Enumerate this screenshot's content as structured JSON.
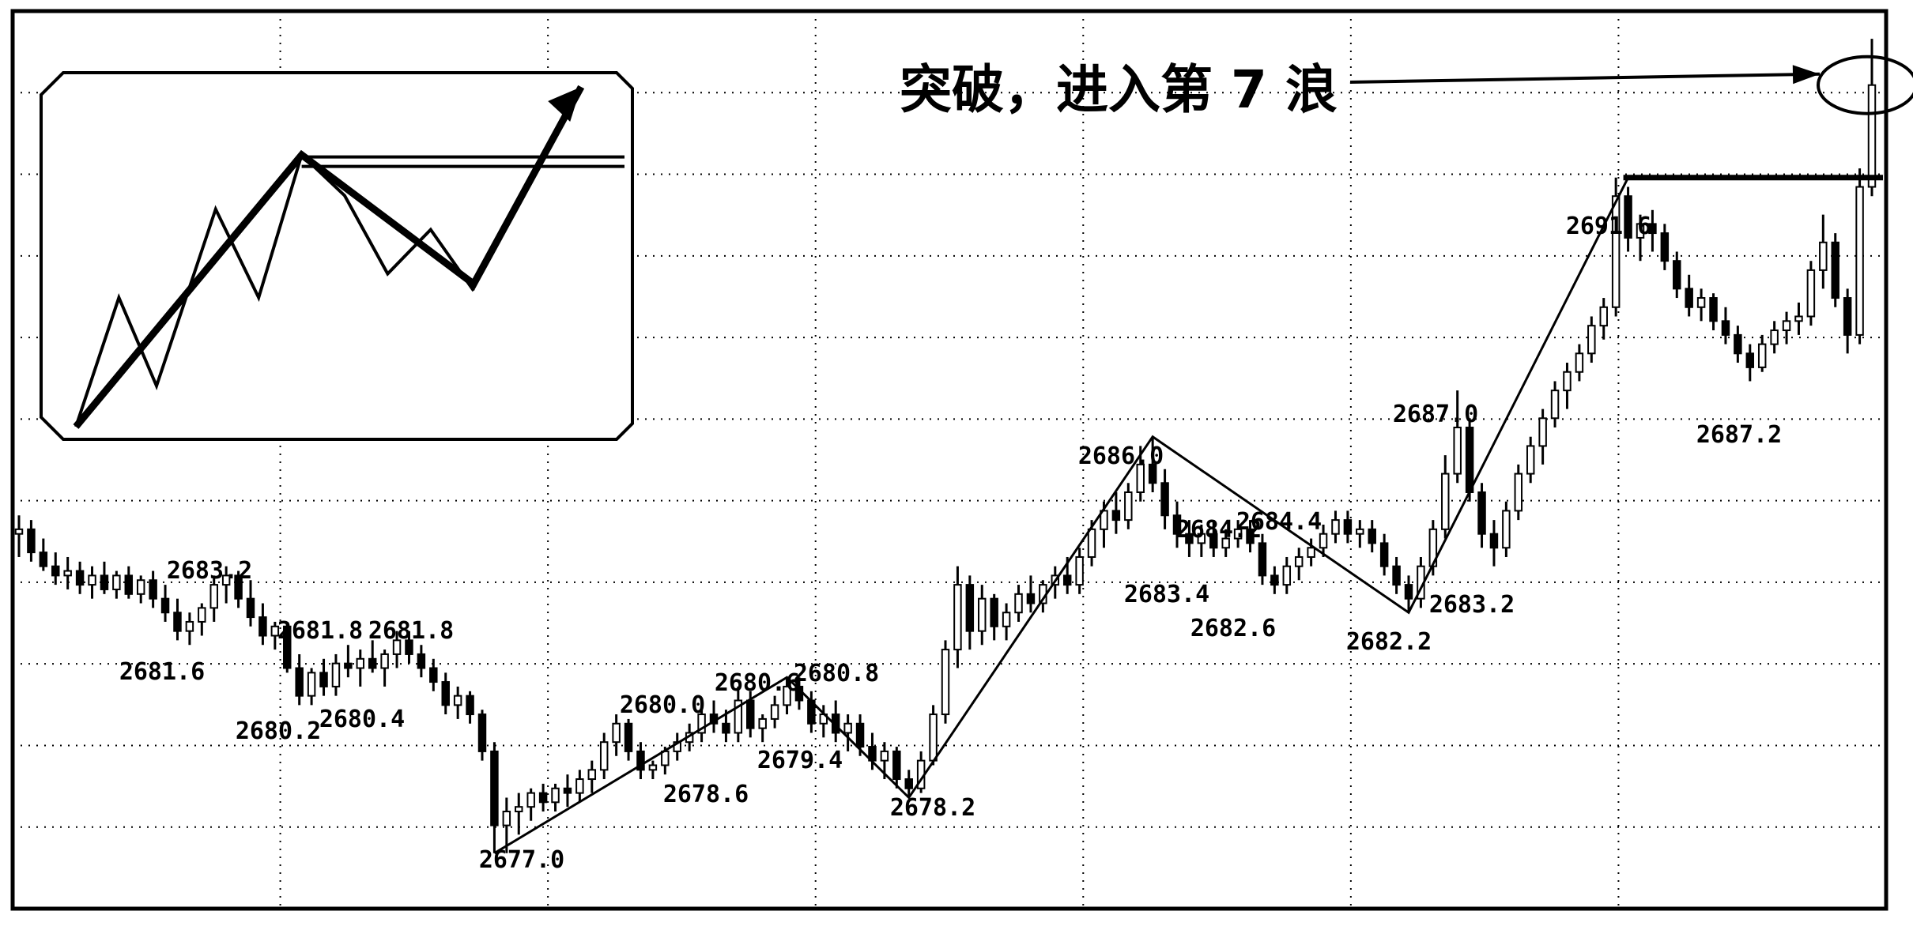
{
  "chart_data": {
    "type": "candlestick",
    "title": "突破，进入第 7 浪",
    "xlabel": "",
    "ylabel": "",
    "ylim": [
      2675.8,
      2695.2
    ],
    "grid": true,
    "price_labels": [
      {
        "text": "2683.2",
        "value": 2683.2
      },
      {
        "text": "2681.6",
        "value": 2681.6
      },
      {
        "text": "2681.8",
        "value": 2681.8
      },
      {
        "text": "2681.8",
        "value": 2681.8
      },
      {
        "text": "2680.2",
        "value": 2680.2
      },
      {
        "text": "2680.4",
        "value": 2680.4
      },
      {
        "text": "2680.0",
        "value": 2680.0
      },
      {
        "text": "2680.6",
        "value": 2680.6
      },
      {
        "text": "2680.8",
        "value": 2680.8
      },
      {
        "text": "2679.4",
        "value": 2679.4
      },
      {
        "text": "2678.6",
        "value": 2678.6
      },
      {
        "text": "2678.2",
        "value": 2678.2
      },
      {
        "text": "2677.0",
        "value": 2677.0
      },
      {
        "text": "2686.0",
        "value": 2686.0
      },
      {
        "text": "2684.2",
        "value": 2684.2
      },
      {
        "text": "2684.4",
        "value": 2684.4
      },
      {
        "text": "2683.4",
        "value": 2683.4
      },
      {
        "text": "2682.6",
        "value": 2682.6
      },
      {
        "text": "2682.2",
        "value": 2682.2
      },
      {
        "text": "2687.0",
        "value": 2687.0
      },
      {
        "text": "2683.2",
        "value": 2683.2
      },
      {
        "text": "2691.6",
        "value": 2691.6
      },
      {
        "text": "2687.2",
        "value": 2687.2
      }
    ],
    "wave_points": [
      2677.0,
      2680.8,
      2678.2,
      2686.0,
      2682.2,
      2691.6,
      2693.6
    ],
    "breakout_level": 2691.6,
    "candles": [
      {
        "o": 2683.9,
        "h": 2684.3,
        "l": 2683.4,
        "c": 2684.0
      },
      {
        "o": 2684.0,
        "h": 2684.2,
        "l": 2683.3,
        "c": 2683.5
      },
      {
        "o": 2683.5,
        "h": 2683.8,
        "l": 2683.1,
        "c": 2683.2
      },
      {
        "o": 2683.2,
        "h": 2683.5,
        "l": 2682.8,
        "c": 2683.0
      },
      {
        "o": 2683.0,
        "h": 2683.4,
        "l": 2682.7,
        "c": 2683.1
      },
      {
        "o": 2683.1,
        "h": 2683.3,
        "l": 2682.6,
        "c": 2682.8
      },
      {
        "o": 2682.8,
        "h": 2683.2,
        "l": 2682.5,
        "c": 2683.0
      },
      {
        "o": 2683.0,
        "h": 2683.3,
        "l": 2682.6,
        "c": 2682.7
      },
      {
        "o": 2682.7,
        "h": 2683.1,
        "l": 2682.5,
        "c": 2683.0
      },
      {
        "o": 2683.0,
        "h": 2683.2,
        "l": 2682.5,
        "c": 2682.6
      },
      {
        "o": 2682.6,
        "h": 2683.0,
        "l": 2682.4,
        "c": 2682.9
      },
      {
        "o": 2682.9,
        "h": 2683.1,
        "l": 2682.3,
        "c": 2682.5
      },
      {
        "o": 2682.5,
        "h": 2682.8,
        "l": 2682.0,
        "c": 2682.2
      },
      {
        "o": 2682.2,
        "h": 2682.5,
        "l": 2681.6,
        "c": 2681.8
      },
      {
        "o": 2681.8,
        "h": 2682.2,
        "l": 2681.5,
        "c": 2682.0
      },
      {
        "o": 2682.0,
        "h": 2682.4,
        "l": 2681.7,
        "c": 2682.3
      },
      {
        "o": 2682.3,
        "h": 2683.0,
        "l": 2682.0,
        "c": 2682.8
      },
      {
        "o": 2682.8,
        "h": 2683.2,
        "l": 2682.4,
        "c": 2683.0
      },
      {
        "o": 2683.0,
        "h": 2683.1,
        "l": 2682.3,
        "c": 2682.5
      },
      {
        "o": 2682.5,
        "h": 2682.9,
        "l": 2681.9,
        "c": 2682.1
      },
      {
        "o": 2682.1,
        "h": 2682.4,
        "l": 2681.5,
        "c": 2681.7
      },
      {
        "o": 2681.7,
        "h": 2682.0,
        "l": 2681.4,
        "c": 2681.9
      },
      {
        "o": 2681.9,
        "h": 2682.0,
        "l": 2680.9,
        "c": 2681.0
      },
      {
        "o": 2681.0,
        "h": 2681.3,
        "l": 2680.2,
        "c": 2680.4
      },
      {
        "o": 2680.4,
        "h": 2681.0,
        "l": 2680.2,
        "c": 2680.9
      },
      {
        "o": 2680.9,
        "h": 2681.2,
        "l": 2680.4,
        "c": 2680.6
      },
      {
        "o": 2680.6,
        "h": 2681.3,
        "l": 2680.4,
        "c": 2681.1
      },
      {
        "o": 2681.1,
        "h": 2681.5,
        "l": 2680.8,
        "c": 2681.0
      },
      {
        "o": 2681.0,
        "h": 2681.4,
        "l": 2680.6,
        "c": 2681.2
      },
      {
        "o": 2681.2,
        "h": 2681.6,
        "l": 2680.9,
        "c": 2681.0
      },
      {
        "o": 2681.0,
        "h": 2681.4,
        "l": 2680.6,
        "c": 2681.3
      },
      {
        "o": 2681.3,
        "h": 2681.8,
        "l": 2681.0,
        "c": 2681.6
      },
      {
        "o": 2681.6,
        "h": 2681.8,
        "l": 2681.1,
        "c": 2681.3
      },
      {
        "o": 2681.3,
        "h": 2681.5,
        "l": 2680.8,
        "c": 2681.0
      },
      {
        "o": 2681.0,
        "h": 2681.2,
        "l": 2680.5,
        "c": 2680.7
      },
      {
        "o": 2680.7,
        "h": 2680.9,
        "l": 2680.0,
        "c": 2680.2
      },
      {
        "o": 2680.2,
        "h": 2680.6,
        "l": 2679.9,
        "c": 2680.4
      },
      {
        "o": 2680.4,
        "h": 2680.5,
        "l": 2679.8,
        "c": 2680.0
      },
      {
        "o": 2680.0,
        "h": 2680.1,
        "l": 2679.0,
        "c": 2679.2
      },
      {
        "o": 2679.2,
        "h": 2679.4,
        "l": 2677.0,
        "c": 2677.6
      },
      {
        "o": 2677.6,
        "h": 2678.2,
        "l": 2677.0,
        "c": 2677.9
      },
      {
        "o": 2677.9,
        "h": 2678.3,
        "l": 2677.4,
        "c": 2678.0
      },
      {
        "o": 2678.0,
        "h": 2678.4,
        "l": 2677.7,
        "c": 2678.3
      },
      {
        "o": 2678.3,
        "h": 2678.5,
        "l": 2677.9,
        "c": 2678.1
      },
      {
        "o": 2678.1,
        "h": 2678.5,
        "l": 2677.9,
        "c": 2678.4
      },
      {
        "o": 2678.4,
        "h": 2678.7,
        "l": 2678.0,
        "c": 2678.3
      },
      {
        "o": 2678.3,
        "h": 2678.8,
        "l": 2678.1,
        "c": 2678.6
      },
      {
        "o": 2678.6,
        "h": 2679.0,
        "l": 2678.3,
        "c": 2678.8
      },
      {
        "o": 2678.8,
        "h": 2679.6,
        "l": 2678.6,
        "c": 2679.4
      },
      {
        "o": 2679.4,
        "h": 2680.0,
        "l": 2679.1,
        "c": 2679.8
      },
      {
        "o": 2679.8,
        "h": 2679.9,
        "l": 2679.0,
        "c": 2679.2
      },
      {
        "o": 2679.2,
        "h": 2679.4,
        "l": 2678.6,
        "c": 2678.8
      },
      {
        "o": 2678.8,
        "h": 2679.0,
        "l": 2678.6,
        "c": 2678.9
      },
      {
        "o": 2678.9,
        "h": 2679.3,
        "l": 2678.7,
        "c": 2679.2
      },
      {
        "o": 2679.2,
        "h": 2679.6,
        "l": 2679.0,
        "c": 2679.4
      },
      {
        "o": 2679.4,
        "h": 2679.8,
        "l": 2679.2,
        "c": 2679.6
      },
      {
        "o": 2679.6,
        "h": 2680.1,
        "l": 2679.4,
        "c": 2680.0
      },
      {
        "o": 2680.0,
        "h": 2680.3,
        "l": 2679.6,
        "c": 2679.8
      },
      {
        "o": 2679.8,
        "h": 2680.1,
        "l": 2679.4,
        "c": 2679.6
      },
      {
        "o": 2679.6,
        "h": 2680.6,
        "l": 2679.4,
        "c": 2680.3
      },
      {
        "o": 2680.3,
        "h": 2680.5,
        "l": 2679.5,
        "c": 2679.7
      },
      {
        "o": 2679.7,
        "h": 2680.0,
        "l": 2679.4,
        "c": 2679.9
      },
      {
        "o": 2679.9,
        "h": 2680.4,
        "l": 2679.7,
        "c": 2680.2
      },
      {
        "o": 2680.2,
        "h": 2680.8,
        "l": 2680.0,
        "c": 2680.6
      },
      {
        "o": 2680.6,
        "h": 2680.8,
        "l": 2680.1,
        "c": 2680.3
      },
      {
        "o": 2680.3,
        "h": 2680.5,
        "l": 2679.6,
        "c": 2679.8
      },
      {
        "o": 2679.8,
        "h": 2680.2,
        "l": 2679.5,
        "c": 2680.0
      },
      {
        "o": 2680.0,
        "h": 2680.3,
        "l": 2679.4,
        "c": 2679.6
      },
      {
        "o": 2679.6,
        "h": 2680.0,
        "l": 2679.2,
        "c": 2679.8
      },
      {
        "o": 2679.8,
        "h": 2680.0,
        "l": 2679.1,
        "c": 2679.3
      },
      {
        "o": 2679.3,
        "h": 2679.6,
        "l": 2678.8,
        "c": 2679.0
      },
      {
        "o": 2679.0,
        "h": 2679.4,
        "l": 2678.6,
        "c": 2679.2
      },
      {
        "o": 2679.2,
        "h": 2679.3,
        "l": 2678.4,
        "c": 2678.6
      },
      {
        "o": 2678.6,
        "h": 2678.8,
        "l": 2678.2,
        "c": 2678.4
      },
      {
        "o": 2678.4,
        "h": 2679.2,
        "l": 2678.3,
        "c": 2679.0
      },
      {
        "o": 2679.0,
        "h": 2680.2,
        "l": 2678.9,
        "c": 2680.0
      },
      {
        "o": 2680.0,
        "h": 2681.6,
        "l": 2679.8,
        "c": 2681.4
      },
      {
        "o": 2681.4,
        "h": 2683.2,
        "l": 2681.0,
        "c": 2682.8
      },
      {
        "o": 2682.8,
        "h": 2683.0,
        "l": 2681.4,
        "c": 2681.8
      },
      {
        "o": 2681.8,
        "h": 2682.8,
        "l": 2681.5,
        "c": 2682.5
      },
      {
        "o": 2682.5,
        "h": 2682.6,
        "l": 2681.6,
        "c": 2681.9
      },
      {
        "o": 2681.9,
        "h": 2682.4,
        "l": 2681.6,
        "c": 2682.2
      },
      {
        "o": 2682.2,
        "h": 2682.8,
        "l": 2682.0,
        "c": 2682.6
      },
      {
        "o": 2682.6,
        "h": 2683.0,
        "l": 2682.2,
        "c": 2682.4
      },
      {
        "o": 2682.4,
        "h": 2682.9,
        "l": 2682.2,
        "c": 2682.8
      },
      {
        "o": 2682.8,
        "h": 2683.2,
        "l": 2682.5,
        "c": 2683.0
      },
      {
        "o": 2683.0,
        "h": 2683.4,
        "l": 2682.6,
        "c": 2682.8
      },
      {
        "o": 2682.8,
        "h": 2683.6,
        "l": 2682.6,
        "c": 2683.4
      },
      {
        "o": 2683.4,
        "h": 2684.2,
        "l": 2683.2,
        "c": 2684.0
      },
      {
        "o": 2684.0,
        "h": 2684.6,
        "l": 2683.6,
        "c": 2684.4
      },
      {
        "o": 2684.4,
        "h": 2684.8,
        "l": 2683.9,
        "c": 2684.2
      },
      {
        "o": 2684.2,
        "h": 2685.0,
        "l": 2684.0,
        "c": 2684.8
      },
      {
        "o": 2684.8,
        "h": 2685.8,
        "l": 2684.6,
        "c": 2685.4
      },
      {
        "o": 2685.4,
        "h": 2686.0,
        "l": 2684.8,
        "c": 2685.0
      },
      {
        "o": 2685.0,
        "h": 2685.3,
        "l": 2684.0,
        "c": 2684.3
      },
      {
        "o": 2684.3,
        "h": 2684.6,
        "l": 2683.6,
        "c": 2683.9
      },
      {
        "o": 2683.9,
        "h": 2684.2,
        "l": 2683.4,
        "c": 2683.7
      },
      {
        "o": 2683.7,
        "h": 2684.1,
        "l": 2683.4,
        "c": 2683.9
      },
      {
        "o": 2683.9,
        "h": 2684.2,
        "l": 2683.4,
        "c": 2683.6
      },
      {
        "o": 2683.6,
        "h": 2684.0,
        "l": 2683.4,
        "c": 2683.8
      },
      {
        "o": 2683.8,
        "h": 2684.2,
        "l": 2683.6,
        "c": 2684.0
      },
      {
        "o": 2684.0,
        "h": 2684.2,
        "l": 2683.5,
        "c": 2683.7
      },
      {
        "o": 2683.7,
        "h": 2683.9,
        "l": 2682.8,
        "c": 2683.0
      },
      {
        "o": 2683.0,
        "h": 2683.2,
        "l": 2682.6,
        "c": 2682.8
      },
      {
        "o": 2682.8,
        "h": 2683.4,
        "l": 2682.6,
        "c": 2683.2
      },
      {
        "o": 2683.2,
        "h": 2683.6,
        "l": 2682.9,
        "c": 2683.4
      },
      {
        "o": 2683.4,
        "h": 2683.8,
        "l": 2683.2,
        "c": 2683.6
      },
      {
        "o": 2683.6,
        "h": 2684.1,
        "l": 2683.4,
        "c": 2683.9
      },
      {
        "o": 2683.9,
        "h": 2684.4,
        "l": 2683.7,
        "c": 2684.2
      },
      {
        "o": 2684.2,
        "h": 2684.4,
        "l": 2683.7,
        "c": 2683.9
      },
      {
        "o": 2683.9,
        "h": 2684.2,
        "l": 2683.6,
        "c": 2684.0
      },
      {
        "o": 2684.0,
        "h": 2684.2,
        "l": 2683.5,
        "c": 2683.7
      },
      {
        "o": 2683.7,
        "h": 2683.9,
        "l": 2683.0,
        "c": 2683.2
      },
      {
        "o": 2683.2,
        "h": 2683.4,
        "l": 2682.6,
        "c": 2682.8
      },
      {
        "o": 2682.8,
        "h": 2683.0,
        "l": 2682.2,
        "c": 2682.5
      },
      {
        "o": 2682.5,
        "h": 2683.4,
        "l": 2682.3,
        "c": 2683.2
      },
      {
        "o": 2683.2,
        "h": 2684.2,
        "l": 2683.0,
        "c": 2684.0
      },
      {
        "o": 2684.0,
        "h": 2685.6,
        "l": 2683.8,
        "c": 2685.2
      },
      {
        "o": 2685.2,
        "h": 2687.0,
        "l": 2685.0,
        "c": 2686.2
      },
      {
        "o": 2686.2,
        "h": 2686.4,
        "l": 2684.6,
        "c": 2684.8
      },
      {
        "o": 2684.8,
        "h": 2685.0,
        "l": 2683.6,
        "c": 2683.9
      },
      {
        "o": 2683.9,
        "h": 2684.2,
        "l": 2683.2,
        "c": 2683.6
      },
      {
        "o": 2683.6,
        "h": 2684.6,
        "l": 2683.4,
        "c": 2684.4
      },
      {
        "o": 2684.4,
        "h": 2685.4,
        "l": 2684.2,
        "c": 2685.2
      },
      {
        "o": 2685.2,
        "h": 2686.0,
        "l": 2685.0,
        "c": 2685.8
      },
      {
        "o": 2685.8,
        "h": 2686.6,
        "l": 2685.4,
        "c": 2686.4
      },
      {
        "o": 2686.4,
        "h": 2687.2,
        "l": 2686.2,
        "c": 2687.0
      },
      {
        "o": 2687.0,
        "h": 2687.6,
        "l": 2686.6,
        "c": 2687.4
      },
      {
        "o": 2687.4,
        "h": 2688.0,
        "l": 2687.2,
        "c": 2687.8
      },
      {
        "o": 2687.8,
        "h": 2688.6,
        "l": 2687.6,
        "c": 2688.4
      },
      {
        "o": 2688.4,
        "h": 2689.0,
        "l": 2688.1,
        "c": 2688.8
      },
      {
        "o": 2688.8,
        "h": 2691.6,
        "l": 2688.6,
        "c": 2691.2
      },
      {
        "o": 2691.2,
        "h": 2691.4,
        "l": 2690.0,
        "c": 2690.3
      },
      {
        "o": 2690.3,
        "h": 2690.8,
        "l": 2689.8,
        "c": 2690.6
      },
      {
        "o": 2690.6,
        "h": 2690.9,
        "l": 2690.0,
        "c": 2690.4
      },
      {
        "o": 2690.4,
        "h": 2690.6,
        "l": 2689.6,
        "c": 2689.8
      },
      {
        "o": 2689.8,
        "h": 2690.0,
        "l": 2689.0,
        "c": 2689.2
      },
      {
        "o": 2689.2,
        "h": 2689.5,
        "l": 2688.6,
        "c": 2688.8
      },
      {
        "o": 2688.8,
        "h": 2689.2,
        "l": 2688.5,
        "c": 2689.0
      },
      {
        "o": 2689.0,
        "h": 2689.1,
        "l": 2688.3,
        "c": 2688.5
      },
      {
        "o": 2688.5,
        "h": 2688.8,
        "l": 2688.0,
        "c": 2688.2
      },
      {
        "o": 2688.2,
        "h": 2688.4,
        "l": 2687.6,
        "c": 2687.8
      },
      {
        "o": 2687.8,
        "h": 2688.0,
        "l": 2687.2,
        "c": 2687.5
      },
      {
        "o": 2687.5,
        "h": 2688.2,
        "l": 2687.4,
        "c": 2688.0
      },
      {
        "o": 2688.0,
        "h": 2688.5,
        "l": 2687.8,
        "c": 2688.3
      },
      {
        "o": 2688.3,
        "h": 2688.7,
        "l": 2688.0,
        "c": 2688.5
      },
      {
        "o": 2688.5,
        "h": 2688.9,
        "l": 2688.2,
        "c": 2688.6
      },
      {
        "o": 2688.6,
        "h": 2689.8,
        "l": 2688.4,
        "c": 2689.6
      },
      {
        "o": 2689.6,
        "h": 2690.8,
        "l": 2689.2,
        "c": 2690.2
      },
      {
        "o": 2690.2,
        "h": 2690.4,
        "l": 2688.8,
        "c": 2689.0
      },
      {
        "o": 2689.0,
        "h": 2689.2,
        "l": 2687.8,
        "c": 2688.2
      },
      {
        "o": 2688.2,
        "h": 2691.8,
        "l": 2688.0,
        "c": 2691.4
      },
      {
        "o": 2691.4,
        "h": 2694.6,
        "l": 2691.2,
        "c": 2693.6
      }
    ]
  },
  "inset": {
    "zigzag": [
      [
        0.0,
        1.0
      ],
      [
        0.08,
        0.62
      ],
      [
        0.15,
        0.88
      ],
      [
        0.26,
        0.36
      ],
      [
        0.34,
        0.62
      ],
      [
        0.42,
        0.2
      ],
      [
        0.5,
        0.32
      ],
      [
        0.58,
        0.55
      ],
      [
        0.66,
        0.42
      ],
      [
        0.74,
        0.6
      ]
    ],
    "trend_line": [
      [
        0.0,
        1.0
      ],
      [
        0.42,
        0.2
      ],
      [
        0.74,
        0.58
      ],
      [
        0.94,
        0.0
      ]
    ],
    "resistance": 0.22
  }
}
